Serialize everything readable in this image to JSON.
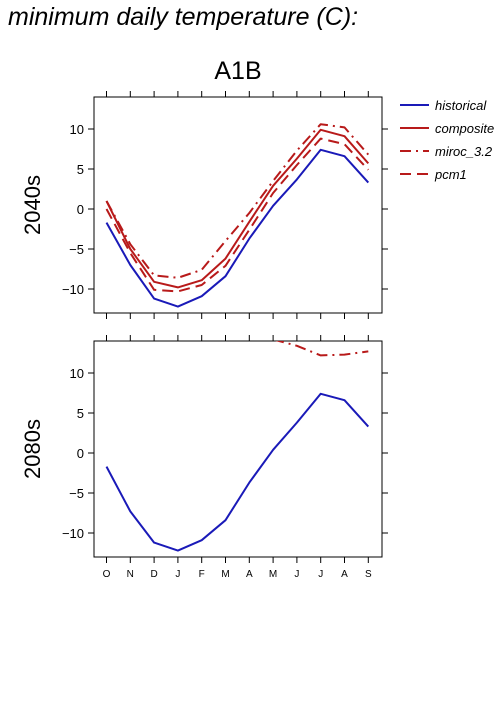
{
  "page_title": "minimum daily temperature (C):",
  "chart_data": {
    "type": "line",
    "title": "A1B",
    "categories": [
      "O",
      "N",
      "D",
      "J",
      "F",
      "M",
      "A",
      "M",
      "J",
      "J",
      "A",
      "S"
    ],
    "ylim": [
      -13,
      14
    ],
    "yticks": [
      -10,
      -5,
      0,
      5,
      10
    ],
    "ytick_labels": [
      "−10",
      "−5",
      "0",
      "5",
      "10"
    ],
    "legend_position": "right",
    "legend": [
      {
        "name": "historical",
        "color": "#1a1ab8",
        "dash": "solid"
      },
      {
        "name": "composite",
        "color": "#b81a1a",
        "dash": "solid"
      },
      {
        "name": "miroc_3.2",
        "color": "#b81a1a",
        "dash": "dashdot"
      },
      {
        "name": "pcm1",
        "color": "#b81a1a",
        "dash": "dashed"
      }
    ],
    "panels": [
      {
        "label": "2040s",
        "series": [
          {
            "name": "historical",
            "values": [
              -1.7,
              -7.0,
              -11.2,
              -12.2,
              -10.9,
              -8.4,
              -3.7,
              0.4,
              3.7,
              7.4,
              6.6,
              3.3
            ]
          },
          {
            "name": "composite",
            "values": [
              1.0,
              -5.0,
              -9.1,
              -9.8,
              -8.9,
              -6.2,
              -1.6,
              2.9,
              6.3,
              9.9,
              9.1,
              5.7
            ]
          },
          {
            "name": "miroc_3.2",
            "values": [
              1.0,
              -4.4,
              -8.3,
              -8.6,
              -7.6,
              -4.0,
              -0.5,
              3.5,
              7.3,
              10.6,
              10.2,
              6.8
            ]
          },
          {
            "name": "pcm1",
            "values": [
              0.0,
              -5.5,
              -10.1,
              -10.3,
              -9.5,
              -7.1,
              -2.6,
              2.0,
              5.5,
              8.8,
              8.1,
              4.9
            ]
          }
        ]
      },
      {
        "label": "2080s",
        "series": [
          {
            "name": "historical",
            "values": [
              -1.7,
              -7.3,
              -11.2,
              -12.2,
              -10.9,
              -8.4,
              -3.7,
              0.4,
              3.8,
              7.4,
              6.6,
              3.3
            ]
          },
          {
            "name": "miroc_3.2",
            "values": [
              null,
              null,
              null,
              null,
              null,
              null,
              null,
              14.2,
              13.4,
              12.2,
              12.3,
              12.7
            ]
          }
        ]
      }
    ]
  }
}
